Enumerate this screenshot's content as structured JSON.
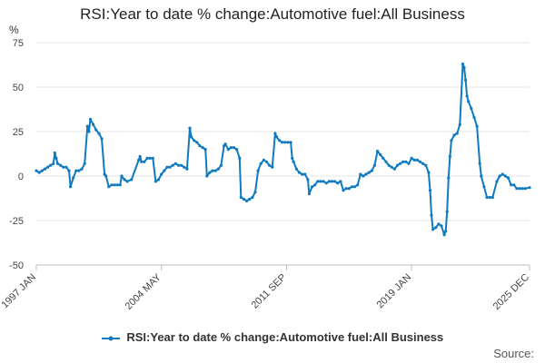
{
  "chart_data": {
    "type": "line",
    "title": "RSI:Year to date % change:Automotive fuel:All Business",
    "ylabel": "%",
    "xlabel": "",
    "ylim": [
      -50,
      75
    ],
    "yticks": [
      -50,
      -25,
      0,
      25,
      50,
      75
    ],
    "xlim": [
      "1997-01",
      "2025-12"
    ],
    "xticks": [
      "1997 JAN",
      "2004 MAY",
      "2011 SEP",
      "2019 JAN",
      "2025 DEC"
    ],
    "grid": true,
    "legend_position": "bottom",
    "series": [
      {
        "name": "RSI:Year to date % change:Automotive fuel:All Business",
        "color": "#0f7ac0",
        "points": [
          [
            "1997-01",
            3
          ],
          [
            "1997-03",
            2
          ],
          [
            "1997-05",
            3
          ],
          [
            "1997-07",
            4
          ],
          [
            "1997-09",
            5
          ],
          [
            "1997-11",
            6
          ],
          [
            "1998-01",
            7
          ],
          [
            "1998-02",
            13
          ],
          [
            "1998-03",
            10
          ],
          [
            "1998-04",
            7
          ],
          [
            "1998-06",
            6
          ],
          [
            "1998-08",
            5
          ],
          [
            "1998-10",
            5
          ],
          [
            "1998-12",
            3
          ],
          [
            "1999-01",
            -6
          ],
          [
            "1999-03",
            -1
          ],
          [
            "1999-05",
            3
          ],
          [
            "1999-07",
            3
          ],
          [
            "1999-09",
            4
          ],
          [
            "1999-11",
            7
          ],
          [
            "2000-01",
            28
          ],
          [
            "2000-02",
            25
          ],
          [
            "2000-03",
            32
          ],
          [
            "2000-05",
            29
          ],
          [
            "2000-07",
            26
          ],
          [
            "2000-09",
            24
          ],
          [
            "2000-11",
            21
          ],
          [
            "2001-01",
            1
          ],
          [
            "2001-02",
            0
          ],
          [
            "2001-04",
            -6
          ],
          [
            "2001-06",
            -5
          ],
          [
            "2001-08",
            -5
          ],
          [
            "2001-10",
            -5
          ],
          [
            "2001-12",
            -5
          ],
          [
            "2002-01",
            0
          ],
          [
            "2002-03",
            -2
          ],
          [
            "2002-05",
            -3
          ],
          [
            "2002-08",
            -2
          ],
          [
            "2003-01",
            9
          ],
          [
            "2003-02",
            11
          ],
          [
            "2003-03",
            8
          ],
          [
            "2003-05",
            8
          ],
          [
            "2003-07",
            10
          ],
          [
            "2003-09",
            10
          ],
          [
            "2003-11",
            10
          ],
          [
            "2004-01",
            -3
          ],
          [
            "2004-03",
            -2
          ],
          [
            "2004-05",
            1
          ],
          [
            "2004-07",
            3
          ],
          [
            "2004-09",
            5
          ],
          [
            "2004-11",
            5
          ],
          [
            "2005-01",
            6
          ],
          [
            "2005-03",
            7
          ],
          [
            "2005-05",
            6
          ],
          [
            "2005-07",
            6
          ],
          [
            "2005-09",
            5
          ],
          [
            "2005-11",
            4
          ],
          [
            "2006-01",
            27
          ],
          [
            "2006-02",
            22
          ],
          [
            "2006-04",
            20
          ],
          [
            "2006-06",
            19
          ],
          [
            "2006-08",
            17
          ],
          [
            "2006-10",
            16
          ],
          [
            "2006-12",
            15
          ],
          [
            "2007-01",
            0
          ],
          [
            "2007-03",
            2
          ],
          [
            "2007-05",
            3
          ],
          [
            "2007-07",
            3
          ],
          [
            "2007-09",
            4
          ],
          [
            "2007-11",
            6
          ],
          [
            "2008-01",
            17
          ],
          [
            "2008-02",
            18
          ],
          [
            "2008-04",
            15
          ],
          [
            "2008-06",
            16
          ],
          [
            "2008-08",
            16
          ],
          [
            "2008-10",
            15
          ],
          [
            "2008-12",
            10
          ],
          [
            "2009-01",
            -12
          ],
          [
            "2009-03",
            -13
          ],
          [
            "2009-05",
            -14
          ],
          [
            "2009-07",
            -13
          ],
          [
            "2009-09",
            -12
          ],
          [
            "2009-11",
            -9
          ],
          [
            "2010-01",
            3
          ],
          [
            "2010-03",
            7
          ],
          [
            "2010-05",
            9
          ],
          [
            "2010-07",
            8
          ],
          [
            "2010-09",
            6
          ],
          [
            "2010-11",
            5
          ],
          [
            "2011-01",
            24
          ],
          [
            "2011-02",
            22
          ],
          [
            "2011-04",
            20
          ],
          [
            "2011-06",
            19
          ],
          [
            "2011-08",
            19
          ],
          [
            "2011-10",
            19
          ],
          [
            "2011-12",
            19
          ],
          [
            "2012-01",
            10
          ],
          [
            "2012-02",
            8
          ],
          [
            "2012-04",
            4
          ],
          [
            "2012-06",
            2
          ],
          [
            "2012-08",
            1
          ],
          [
            "2012-10",
            1
          ],
          [
            "2012-12",
            -2
          ],
          [
            "2013-01",
            -10
          ],
          [
            "2013-03",
            -6
          ],
          [
            "2013-05",
            -5
          ],
          [
            "2013-07",
            -3
          ],
          [
            "2013-09",
            -3
          ],
          [
            "2013-11",
            -3
          ],
          [
            "2014-01",
            -4
          ],
          [
            "2014-03",
            -3
          ],
          [
            "2014-05",
            -3
          ],
          [
            "2014-07",
            -3
          ],
          [
            "2014-09",
            -4
          ],
          [
            "2014-11",
            -3
          ],
          [
            "2015-01",
            -8
          ],
          [
            "2015-03",
            -7
          ],
          [
            "2015-05",
            -7
          ],
          [
            "2015-07",
            -6
          ],
          [
            "2015-09",
            -6
          ],
          [
            "2015-11",
            -5
          ],
          [
            "2016-01",
            1
          ],
          [
            "2016-03",
            0
          ],
          [
            "2016-05",
            1
          ],
          [
            "2016-07",
            2
          ],
          [
            "2016-09",
            3
          ],
          [
            "2016-11",
            6
          ],
          [
            "2017-01",
            14
          ],
          [
            "2017-03",
            12
          ],
          [
            "2017-05",
            10
          ],
          [
            "2017-07",
            8
          ],
          [
            "2017-09",
            6
          ],
          [
            "2017-11",
            5
          ],
          [
            "2018-01",
            4
          ],
          [
            "2018-03",
            6
          ],
          [
            "2018-05",
            7
          ],
          [
            "2018-07",
            8
          ],
          [
            "2018-09",
            8
          ],
          [
            "2018-11",
            7
          ],
          [
            "2019-01",
            10
          ],
          [
            "2019-03",
            9
          ],
          [
            "2019-05",
            9
          ],
          [
            "2019-07",
            8
          ],
          [
            "2019-09",
            7
          ],
          [
            "2019-11",
            6
          ],
          [
            "2020-01",
            2
          ],
          [
            "2020-02",
            -8
          ],
          [
            "2020-03",
            -22
          ],
          [
            "2020-04",
            -30
          ],
          [
            "2020-06",
            -29
          ],
          [
            "2020-08",
            -27
          ],
          [
            "2020-10",
            -28
          ],
          [
            "2020-12",
            -33
          ],
          [
            "2021-01",
            -31
          ],
          [
            "2021-02",
            -20
          ],
          [
            "2021-03",
            -1
          ],
          [
            "2021-04",
            11
          ],
          [
            "2021-05",
            20
          ],
          [
            "2021-07",
            23
          ],
          [
            "2021-09",
            24
          ],
          [
            "2021-11",
            29
          ],
          [
            "2022-01",
            63
          ],
          [
            "2022-02",
            61
          ],
          [
            "2022-03",
            54
          ],
          [
            "2022-04",
            45
          ],
          [
            "2022-05",
            42
          ],
          [
            "2022-07",
            38
          ],
          [
            "2022-09",
            33
          ],
          [
            "2022-11",
            28
          ],
          [
            "2023-01",
            7
          ],
          [
            "2023-02",
            0
          ],
          [
            "2023-04",
            -6
          ],
          [
            "2023-06",
            -12
          ],
          [
            "2023-08",
            -12
          ],
          [
            "2023-10",
            -12
          ],
          [
            "2024-01",
            -3
          ],
          [
            "2024-03",
            0
          ],
          [
            "2024-05",
            1
          ],
          [
            "2024-07",
            0
          ],
          [
            "2024-09",
            -1
          ],
          [
            "2024-11",
            -5
          ],
          [
            "2025-01",
            -5
          ],
          [
            "2025-03",
            -7
          ],
          [
            "2025-05",
            -7
          ],
          [
            "2025-07",
            -7
          ],
          [
            "2025-09",
            -7
          ],
          [
            "2025-12",
            -6.5
          ]
        ]
      }
    ]
  },
  "legend": {
    "label": "RSI:Year to date % change:Automotive fuel:All Business"
  },
  "footer": {
    "source_label": "Source:"
  }
}
